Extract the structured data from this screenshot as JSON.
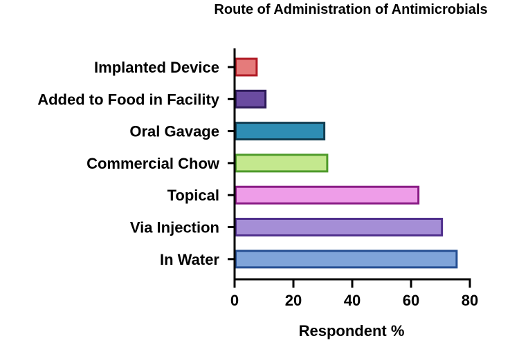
{
  "chart_data": {
    "type": "bar",
    "orientation": "horizontal",
    "title": "Route of Administration of Antimicrobials",
    "xlabel": "Respondent %",
    "ylabel": "",
    "xlim": [
      0,
      80
    ],
    "x_ticks": [
      0,
      20,
      40,
      60,
      80
    ],
    "grid": false,
    "categories": [
      "Implanted Device",
      "Added to Food in Facility",
      "Oral Gavage",
      "Commercial Chow",
      "Topical",
      "Via Injection",
      "In Water"
    ],
    "values": [
      7.5,
      10.5,
      30.5,
      31.5,
      62.5,
      70.5,
      75.5
    ],
    "bar_fill_colors": [
      "#e57b7b",
      "#6a4ba0",
      "#2e8db3",
      "#c4e88e",
      "#ee9de8",
      "#a58ed6",
      "#7fa4d9"
    ],
    "bar_edge_colors": [
      "#b01a24",
      "#2e1b5a",
      "#123e52",
      "#4e9a2a",
      "#8a1c86",
      "#4f2f8c",
      "#244e92"
    ]
  }
}
